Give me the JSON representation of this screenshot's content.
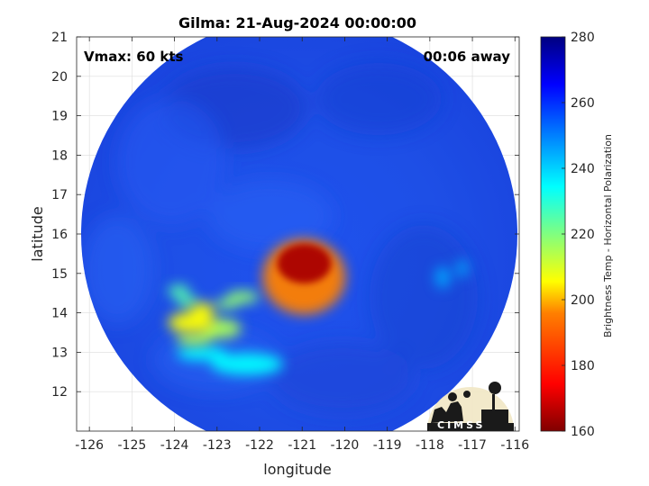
{
  "chart_data": {
    "type": "heatmap",
    "title": "Gilma: 21-Aug-2024 00:00:00",
    "xlabel": "longitude",
    "ylabel": "latitude",
    "xlim": [
      -126.3,
      -115.9
    ],
    "ylim": [
      11.0,
      21.0
    ],
    "x_ticks": [
      -126,
      -125,
      -124,
      -123,
      -122,
      -121,
      -120,
      -119,
      -118,
      -117,
      -116
    ],
    "x_tick_labels": [
      "-126",
      "-125",
      "-124",
      "-123",
      "-122",
      "-121",
      "-120",
      "-119",
      "-118",
      "-117",
      "-116"
    ],
    "y_ticks": [
      12,
      13,
      14,
      15,
      16,
      17,
      18,
      19,
      20,
      21
    ],
    "y_tick_labels": [
      "12",
      "13",
      "14",
      "15",
      "16",
      "17",
      "18",
      "19",
      "20",
      "21"
    ],
    "grid": true,
    "swath_center": {
      "lon": -121.05,
      "lat": 16.0
    },
    "annotations": {
      "left": "Vmax: 60 kts",
      "right": "00:06 away"
    },
    "colorbar": {
      "label": "Brightness Temp - Horizontal Polarization",
      "range": [
        160,
        280
      ],
      "ticks": [
        160,
        180,
        200,
        220,
        240,
        260,
        280
      ],
      "colormap": [
        "#800000",
        "#ff0000",
        "#ff8000",
        "#ffff00",
        "#80ff80",
        "#00ffff",
        "#0080ff",
        "#0000ff",
        "#000080"
      ]
    },
    "features": [
      {
        "name": "core",
        "lon": -120.95,
        "lat": 15.25,
        "value": 165
      },
      {
        "name": "core-ring",
        "lon": -120.85,
        "lat": 15.05,
        "value": 190
      },
      {
        "name": "band-west-1",
        "lon": -123.6,
        "lat": 13.75,
        "value": 205
      },
      {
        "name": "band-west-2",
        "lon": -122.9,
        "lat": 13.6,
        "value": 215
      },
      {
        "name": "band-west-3",
        "lon": -123.9,
        "lat": 14.55,
        "value": 225
      },
      {
        "name": "band-west-4",
        "lon": -122.4,
        "lat": 14.4,
        "value": 218
      },
      {
        "name": "band-south",
        "lon": -122.3,
        "lat": 12.7,
        "value": 235
      },
      {
        "name": "outer-rain-east",
        "lon": -117.7,
        "lat": 14.9,
        "value": 245
      }
    ],
    "background_value": 262
  },
  "logo": {
    "text": "CIMSS"
  }
}
